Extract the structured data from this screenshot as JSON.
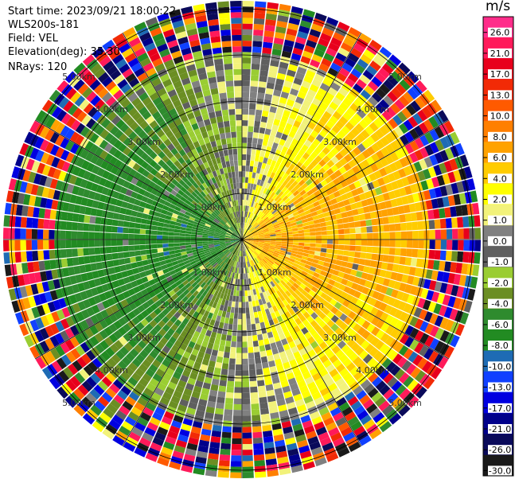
{
  "info": {
    "start_time": "Start time: 2023/09/21 18:00:22",
    "instrument": "WLS200s-181",
    "field": "Field: VEL",
    "elevation": "Elevation(deg): 35.30",
    "nrays": "NRays: 120"
  },
  "colorbar": {
    "unit": "m/s",
    "tick_labels": [
      "26.0",
      "21.0",
      "17.0",
      "13.0",
      "10.0",
      "8.0",
      "6.0",
      "4.0",
      "2.0",
      "1.0",
      "0.0",
      "-1.0",
      "-2.0",
      "-4.0",
      "-6.0",
      "-8.0",
      "-10.0",
      "-13.0",
      "-17.0",
      "-21.0",
      "-26.0",
      "-30.0"
    ],
    "colors": [
      "#ff2d8a",
      "#ff1a5a",
      "#e8001c",
      "#f22a06",
      "#ff5a00",
      "#ff7f00",
      "#ffa200",
      "#ffcc00",
      "#ffff00",
      "#f2f27a",
      "#808080",
      "#5f5f5f",
      "#9acd32",
      "#6b8e23",
      "#2e8b2e",
      "#228b22",
      "#1e6bb4",
      "#1040ff",
      "#0000e0",
      "#00008b",
      "#0a0a5a",
      "#1a1a1a"
    ]
  },
  "chart_data": {
    "type": "heatmap",
    "projection": "polar PPI scan",
    "field": "VEL",
    "units": "m/s",
    "value_range": [
      -30,
      26
    ],
    "n_rays": 120,
    "range_rings_km": [
      "1.00km",
      "2.00km",
      "3.00km",
      "4.00km",
      "5.00km"
    ],
    "grid": "range rings and azimuth spokes every 30 deg",
    "pattern": "positive velocities (yellow/orange) to the east, negative velocities (green) to the west, noisy data beyond ~4 km"
  }
}
